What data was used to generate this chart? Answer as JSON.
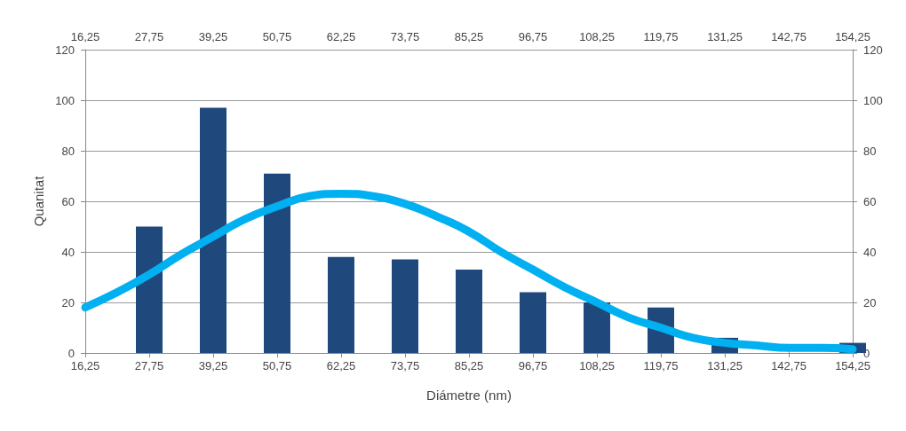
{
  "chart_data": {
    "type": "bar",
    "xlabel": "Diámetre (nm)",
    "ylabel": "Quanitat",
    "xlim": [
      16.25,
      154.25
    ],
    "xticks": [
      {
        "value": 16.25,
        "label": "16,25"
      },
      {
        "value": 27.75,
        "label": "27,75"
      },
      {
        "value": 39.25,
        "label": "39,25"
      },
      {
        "value": 50.75,
        "label": "50,75"
      },
      {
        "value": 62.25,
        "label": "62,25"
      },
      {
        "value": 73.75,
        "label": "73,75"
      },
      {
        "value": 85.25,
        "label": "85,25"
      },
      {
        "value": 96.75,
        "label": "96,75"
      },
      {
        "value": 108.25,
        "label": "108,25"
      },
      {
        "value": 119.75,
        "label": "119,75"
      },
      {
        "value": 131.25,
        "label": "131,25"
      },
      {
        "value": 142.75,
        "label": "142,75"
      },
      {
        "value": 154.25,
        "label": "154,25"
      }
    ],
    "x2lim": [
      16.25,
      154.25
    ],
    "x2ticks": [
      {
        "value": 16.25,
        "label": "16,25"
      },
      {
        "value": 27.75,
        "label": "27,75"
      },
      {
        "value": 39.25,
        "label": "39,25"
      },
      {
        "value": 50.75,
        "label": "50,75"
      },
      {
        "value": 62.25,
        "label": "62,25"
      },
      {
        "value": 73.75,
        "label": "73,75"
      },
      {
        "value": 85.25,
        "label": "85,25"
      },
      {
        "value": 96.75,
        "label": "96,75"
      },
      {
        "value": 108.25,
        "label": "108,25"
      },
      {
        "value": 119.75,
        "label": "119,75"
      },
      {
        "value": 131.25,
        "label": "131,25"
      },
      {
        "value": 142.75,
        "label": "142,75"
      },
      {
        "value": 154.25,
        "label": "154,25"
      }
    ],
    "ylim": [
      0,
      120
    ],
    "yticks": [
      0,
      20,
      40,
      60,
      80,
      100,
      120
    ],
    "y2lim": [
      0,
      120
    ],
    "y2ticks": [
      0,
      20,
      40,
      60,
      80,
      100,
      120
    ],
    "grid": "y",
    "series": [
      {
        "color": "#1f497d",
        "x": [
          27.75,
          39.25,
          50.75,
          62.25,
          73.75,
          85.25,
          96.75,
          108.25,
          119.75,
          131.25,
          142.75,
          154.25
        ],
        "values": [
          50,
          97,
          71,
          38,
          37,
          33,
          24,
          20,
          18,
          6,
          0,
          4
        ]
      },
      {
        "type": "line",
        "color": "#00b0f0",
        "x": [
          16.25,
          22,
          27.75,
          33.5,
          39.25,
          45,
          50.75,
          56.5,
          62.25,
          68,
          73.75,
          79.5,
          85.25,
          91,
          96.75,
          102.5,
          108.25,
          114,
          119.75,
          125.5,
          131.25,
          137,
          142.75,
          148.5,
          154.25
        ],
        "values": [
          18,
          24,
          31,
          39,
          46,
          53,
          58,
          62,
          63,
          62,
          59,
          54,
          48,
          40,
          33,
          26,
          20,
          14,
          10,
          6,
          4,
          3,
          2,
          2,
          1.5
        ]
      }
    ]
  }
}
